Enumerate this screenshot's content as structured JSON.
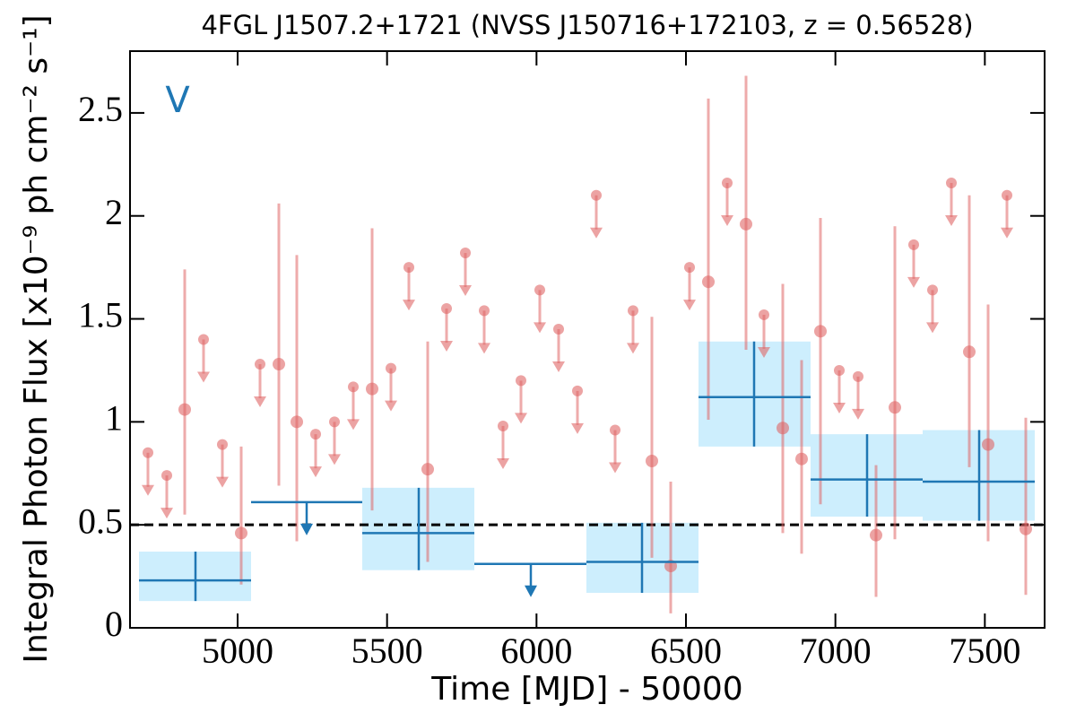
{
  "chart_data": {
    "type": "lightcurve",
    "title": "4FGL J1507.2+1721 (NVSS J150716+172103, z = 0.56528)",
    "xlabel": "Time [MJD] - 50000",
    "ylabel": "Integral Photon Flux [x10⁻⁹ ph cm⁻² s⁻¹]",
    "annotation": "V",
    "xlim": [
      4640,
      7700
    ],
    "ylim": [
      0,
      2.8
    ],
    "xticks": [
      5000,
      5500,
      6000,
      6500,
      7000,
      7500
    ],
    "yticks": [
      0,
      0.5,
      1,
      1.5,
      2,
      2.5
    ],
    "reference_line": 0.5,
    "detections": {
      "color": "#e06666",
      "x": [
        4823,
        5012,
        5138,
        5198,
        5450,
        5636,
        6386,
        6449,
        6575,
        6701,
        6824,
        6887,
        6950,
        7136,
        7199,
        7448,
        7511,
        7637
      ],
      "values": [
        1.06,
        0.46,
        1.28,
        1.0,
        1.16,
        0.77,
        0.81,
        0.3,
        1.68,
        1.96,
        0.97,
        0.82,
        1.44,
        0.45,
        1.07,
        1.34,
        0.89,
        0.48
      ],
      "lower": [
        0.55,
        0.21,
        0.69,
        0.42,
        0.57,
        0.32,
        0.34,
        0.07,
        1.01,
        1.35,
        0.46,
        0.36,
        0.6,
        0.15,
        0.43,
        0.78,
        0.42,
        0.16
      ],
      "upper": [
        1.74,
        0.88,
        2.06,
        1.81,
        1.94,
        1.39,
        1.51,
        0.71,
        2.57,
        2.68,
        1.67,
        1.3,
        1.99,
        0.79,
        1.95,
        2.1,
        1.57,
        1.02
      ]
    },
    "upper_limits": {
      "color": "#e06666",
      "x": [
        4700,
        4763,
        4886,
        4949,
        5075,
        5261,
        5324,
        5387,
        5513,
        5573,
        5699,
        5762,
        5825,
        5888,
        5948,
        6011,
        6074,
        6137,
        6200,
        6263,
        6323,
        6512,
        6638,
        6761,
        7013,
        7076,
        7262,
        7325,
        7388,
        7574
      ],
      "values": [
        0.85,
        0.74,
        1.4,
        0.89,
        1.28,
        0.94,
        1.0,
        1.17,
        1.26,
        1.75,
        1.55,
        1.82,
        1.54,
        0.98,
        1.2,
        1.64,
        1.45,
        1.15,
        2.1,
        0.96,
        1.54,
        1.75,
        2.16,
        1.52,
        1.25,
        1.22,
        1.86,
        1.64,
        2.16,
        2.1
      ]
    },
    "bins": {
      "color": "#1f77b4",
      "box_color": "#cdeefd",
      "x": [
        4859,
        5606,
        6353,
        6728,
        7106,
        7481
      ],
      "x_start": [
        4670,
        5417,
        6167,
        6542,
        6917,
        7292
      ],
      "x_end": [
        5045,
        5792,
        6542,
        6917,
        7292,
        7667
      ],
      "values": [
        0.23,
        0.46,
        0.32,
        1.12,
        0.72,
        0.71
      ],
      "lower": [
        0.13,
        0.28,
        0.17,
        0.88,
        0.54,
        0.52
      ],
      "upper": [
        0.37,
        0.68,
        0.51,
        1.39,
        0.94,
        0.96
      ]
    },
    "bin_upper_limits": {
      "color": "#1f77b4",
      "x": [
        5231,
        5981
      ],
      "x_start": [
        5045,
        5792
      ],
      "x_end": [
        5417,
        6167
      ],
      "values": [
        0.61,
        0.31
      ]
    }
  }
}
